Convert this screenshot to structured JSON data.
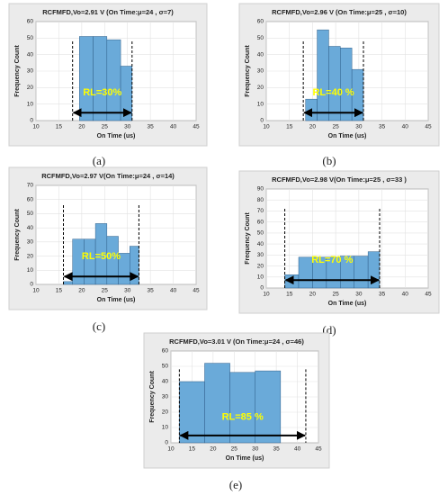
{
  "chart_data": [
    {
      "type": "histogram",
      "title": "RCFMFD,Vo=2.91 V (On Time:μ=24 , σ=7)",
      "xlabel": "On Time (us)",
      "ylabel": "Frequency Count",
      "bins": [
        19.5,
        22.5,
        25.5,
        28.5,
        31
      ],
      "counts": [
        51,
        51,
        49,
        33
      ],
      "color": "#6aaad9",
      "xlim": [
        10,
        45
      ],
      "ylim": [
        0,
        60
      ],
      "xticks": [
        10,
        15,
        20,
        25,
        30,
        35,
        40,
        45
      ],
      "yticks": [
        0,
        10,
        20,
        30,
        40,
        50,
        60
      ],
      "grid": true,
      "annotation": "RL=30%",
      "range_lines": [
        18,
        31
      ],
      "caption": "(a)"
    },
    {
      "type": "histogram",
      "title": "RCFMFD,Vo=2.96 V (On Time:μ=25 , σ=10)",
      "xlabel": "On Time (us)",
      "ylabel": "Frequency Count",
      "bins": [
        18.5,
        21,
        23.5,
        26,
        28.5,
        31
      ],
      "counts": [
        13,
        55,
        45,
        44,
        31
      ],
      "color": "#6aaad9",
      "xlim": [
        10,
        45
      ],
      "ylim": [
        0,
        60
      ],
      "xticks": [
        10,
        15,
        20,
        25,
        30,
        35,
        40,
        45
      ],
      "yticks": [
        0,
        10,
        20,
        30,
        40,
        50,
        60
      ],
      "grid": true,
      "annotation": "RL=40 %",
      "range_lines": [
        18,
        31
      ],
      "caption": "(b)"
    },
    {
      "type": "histogram",
      "title": "RCFMFD,Vo=2.97 V(On Time:μ=24 , σ=14)",
      "xlabel": "On Time (us)",
      "ylabel": "Frequency Count",
      "bins": [
        16,
        18,
        20.5,
        23,
        25.5,
        28,
        30.5,
        32.5
      ],
      "counts": [
        2,
        32,
        32,
        43,
        34,
        22,
        27
      ],
      "color": "#6aaad9",
      "xlim": [
        10,
        45
      ],
      "ylim": [
        0,
        70
      ],
      "xticks": [
        10,
        15,
        20,
        25,
        30,
        35,
        40,
        45
      ],
      "yticks": [
        0,
        10,
        20,
        30,
        40,
        50,
        60,
        70
      ],
      "grid": true,
      "annotation": "RL=50%",
      "range_lines": [
        16,
        32.5
      ],
      "caption": "(c)"
    },
    {
      "type": "histogram",
      "title": "RCFMFD,Vo=2.98 V(On Time:μ=25 , σ=33 )",
      "xlabel": "On Time (us)",
      "ylabel": "Frequency Count",
      "bins": [
        14,
        17,
        20,
        23,
        26,
        29,
        32,
        34.5
      ],
      "counts": [
        12,
        28,
        28,
        28,
        29,
        29,
        33
      ],
      "color": "#6aaad9",
      "xlim": [
        10,
        45
      ],
      "ylim": [
        0,
        90
      ],
      "xticks": [
        10,
        15,
        20,
        25,
        30,
        35,
        40,
        45
      ],
      "yticks": [
        0,
        10,
        20,
        30,
        40,
        50,
        60,
        70,
        80,
        90
      ],
      "grid": true,
      "annotation": "RL=70 %",
      "range_lines": [
        14,
        34.5
      ],
      "caption": "(d)"
    },
    {
      "type": "histogram",
      "title": "RCFMFD,Vo=3.01 V (On Time:μ=24 , σ=46)",
      "xlabel": "On Time (us)",
      "ylabel": "Frequency Count",
      "bins": [
        12,
        18,
        24,
        30,
        36
      ],
      "counts": [
        40,
        52,
        46,
        47
      ],
      "color": "#6aaad9",
      "xlim": [
        10,
        45
      ],
      "ylim": [
        0,
        60
      ],
      "xticks": [
        10,
        15,
        20,
        25,
        30,
        35,
        40,
        45
      ],
      "yticks": [
        0,
        10,
        20,
        30,
        40,
        50,
        60
      ],
      "grid": true,
      "annotation": "RL=85 %",
      "range_lines": [
        12,
        42
      ],
      "caption": "(e)"
    }
  ]
}
